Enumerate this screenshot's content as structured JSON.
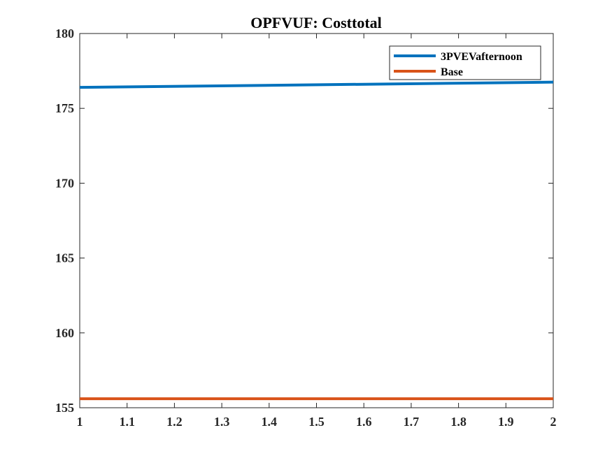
{
  "chart_data": {
    "type": "line",
    "title": "OPFVUF: Costtotal",
    "xlabel": "",
    "ylabel": "",
    "xlim": [
      1,
      2
    ],
    "ylim": [
      155,
      180
    ],
    "xticks": [
      "1",
      "1.1",
      "1.2",
      "1.3",
      "1.4",
      "1.5",
      "1.6",
      "1.7",
      "1.8",
      "1.9",
      "2"
    ],
    "yticks": [
      "155",
      "160",
      "165",
      "170",
      "175",
      "180"
    ],
    "grid": false,
    "legend_position": "top-right",
    "series": [
      {
        "name": "3PVEVafternoon",
        "color": "#0072BD",
        "x": [
          1,
          2
        ],
        "y": [
          176.4,
          176.75
        ]
      },
      {
        "name": "Base",
        "color": "#D95319",
        "x": [
          1,
          2
        ],
        "y": [
          155.6,
          155.6
        ]
      }
    ]
  }
}
